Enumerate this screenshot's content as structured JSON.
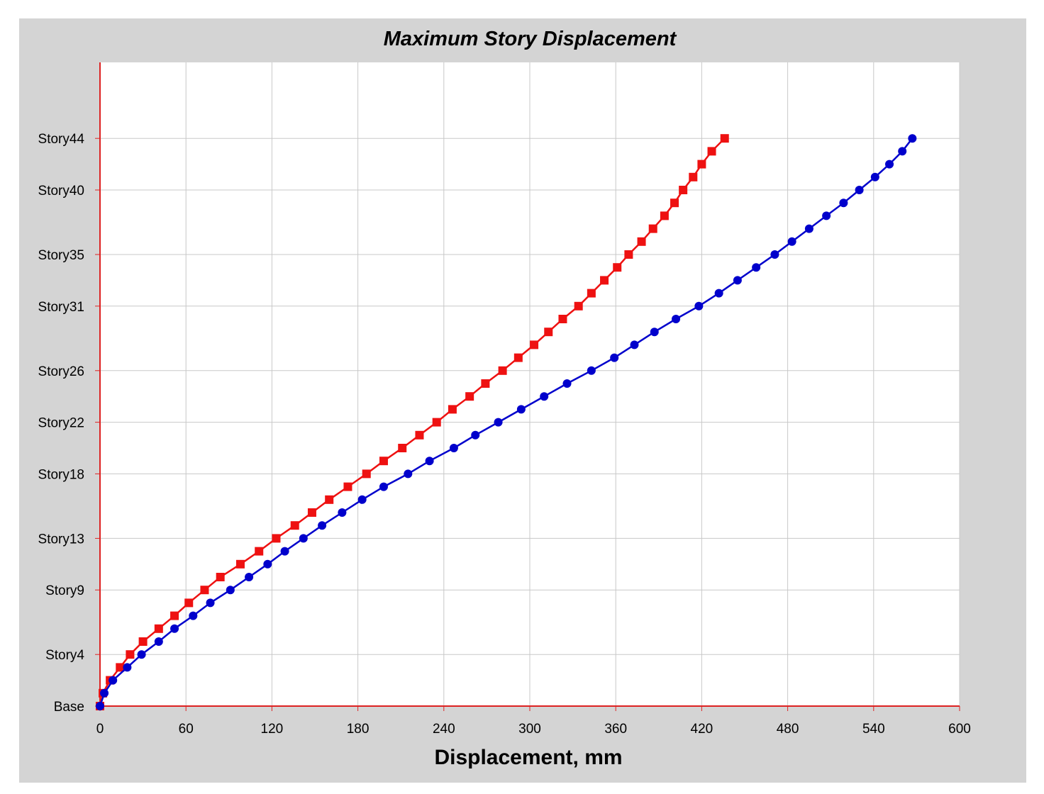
{
  "chart_data": {
    "type": "line",
    "title": "Maximum Story Displacement",
    "xlabel": "Displacement, mm",
    "ylabel": "",
    "xlim": [
      0,
      600
    ],
    "x_ticks": [
      "0",
      "60",
      "120",
      "180",
      "240",
      "300",
      "360",
      "420",
      "480",
      "540",
      "600"
    ],
    "y_tick_labels": [
      {
        "story": 0,
        "label": "Base"
      },
      {
        "story": 4,
        "label": "Story4"
      },
      {
        "story": 9,
        "label": "Story9"
      },
      {
        "story": 13,
        "label": "Story13"
      },
      {
        "story": 18,
        "label": "Story18"
      },
      {
        "story": 22,
        "label": "Story22"
      },
      {
        "story": 26,
        "label": "Story26"
      },
      {
        "story": 31,
        "label": "Story31"
      },
      {
        "story": 35,
        "label": "Story35"
      },
      {
        "story": 40,
        "label": "Story40"
      },
      {
        "story": 44,
        "label": "Story44"
      }
    ],
    "ylim_stories": [
      0,
      50
    ],
    "grid": true,
    "legend": "none",
    "series": [
      {
        "color": "#ee1111",
        "marker": "square",
        "stories": [
          0,
          1,
          2,
          3,
          4,
          5,
          6,
          7,
          8,
          9,
          10,
          11,
          12,
          13,
          14,
          15,
          16,
          17,
          18,
          19,
          20,
          21,
          22,
          23,
          24,
          25,
          26,
          27,
          28,
          29,
          30,
          31,
          32,
          33,
          34,
          35,
          36,
          37,
          38,
          39,
          40,
          41,
          42,
          43,
          44
        ],
        "values": [
          0,
          2,
          7,
          14,
          21,
          30,
          41,
          52,
          62,
          73,
          84,
          98,
          111,
          123,
          136,
          148,
          160,
          173,
          186,
          198,
          211,
          223,
          235,
          246,
          258,
          269,
          281,
          292,
          303,
          313,
          323,
          334,
          343,
          352,
          361,
          369,
          378,
          386,
          394,
          401,
          407,
          414,
          420,
          427,
          436
        ]
      },
      {
        "color": "#0000cc",
        "marker": "circle",
        "stories": [
          0,
          1,
          2,
          3,
          4,
          5,
          6,
          7,
          8,
          9,
          10,
          11,
          12,
          13,
          14,
          15,
          16,
          17,
          18,
          19,
          20,
          21,
          22,
          23,
          24,
          25,
          26,
          27,
          28,
          29,
          30,
          31,
          32,
          33,
          34,
          35,
          36,
          37,
          38,
          39,
          40,
          41,
          42,
          43,
          44
        ],
        "values": [
          0,
          3,
          9,
          19,
          29,
          41,
          52,
          65,
          77,
          91,
          104,
          117,
          129,
          142,
          155,
          169,
          183,
          198,
          215,
          230,
          247,
          262,
          278,
          294,
          310,
          326,
          343,
          359,
          373,
          387,
          402,
          418,
          432,
          445,
          458,
          471,
          483,
          495,
          507,
          519,
          530,
          541,
          551,
          560,
          567
        ]
      }
    ]
  }
}
